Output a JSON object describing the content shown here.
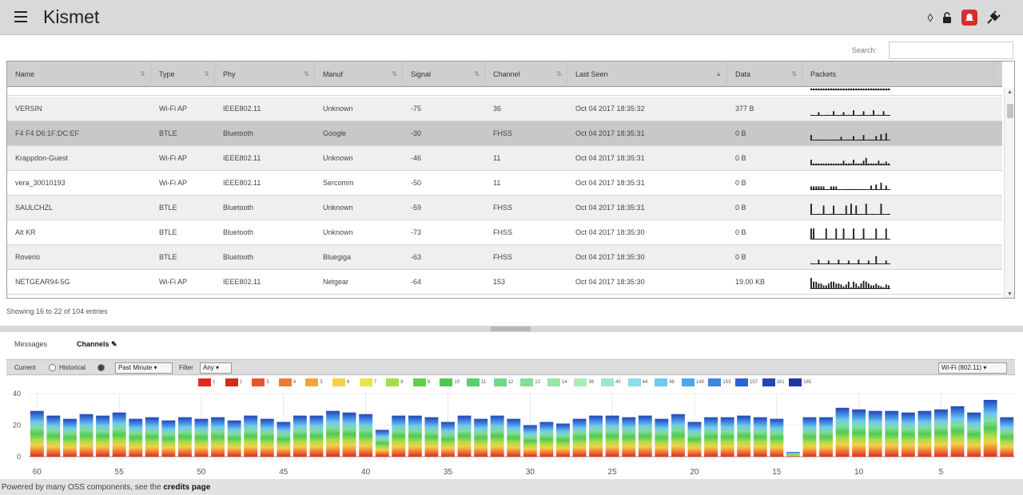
{
  "header": {
    "title": "Kismet",
    "icons": [
      "menu-icon",
      "target-icon",
      "unlock-icon",
      "alert-icon",
      "plugin-icon"
    ]
  },
  "search": {
    "label": "Search:",
    "value": ""
  },
  "table": {
    "columns": [
      "Name",
      "Type",
      "Phy",
      "Manuf",
      "Signal",
      "Channel",
      "Last Seen",
      "Data",
      "Packets"
    ],
    "rows": [
      {
        "name": "",
        "type": "",
        "phy": "",
        "manuf": "",
        "signal": "",
        "channel": "",
        "last_seen": "",
        "data": "",
        "packets": [
          2,
          2,
          2,
          2,
          2,
          2,
          2,
          2,
          2,
          2,
          2,
          2,
          2,
          2,
          2,
          2,
          2,
          2,
          2,
          2,
          2,
          2,
          2,
          2,
          2,
          2,
          2,
          2,
          2,
          2,
          2,
          2
        ]
      },
      {
        "name": "VERSIN",
        "type": "Wi-Fi AP",
        "phy": "IEEE802.11",
        "manuf": "Unknown",
        "signal": "-75",
        "channel": "36",
        "last_seen": "Oct 04 2017 18:35:32",
        "data": "377 B",
        "packets": [
          1,
          0,
          0,
          4,
          0,
          0,
          1,
          1,
          0,
          5,
          0,
          0,
          1,
          4,
          0,
          1,
          0,
          6,
          0,
          0,
          1,
          5,
          0,
          0,
          1,
          6,
          0,
          1,
          0,
          5,
          1,
          0
        ]
      },
      {
        "name": "F4 F4 D6:1F:DC:EF",
        "type": "BTLE",
        "phy": "Bluetooth",
        "manuf": "Google",
        "signal": "-30",
        "channel": "FHSS",
        "last_seen": "Oct 04 2017 18:35:31",
        "data": "0 B",
        "packets": [
          6,
          0,
          0,
          1,
          1,
          1,
          1,
          1,
          0,
          1,
          1,
          1,
          4,
          0,
          1,
          1,
          1,
          5,
          0,
          1,
          1,
          6,
          0,
          1,
          1,
          1,
          5,
          0,
          7,
          0,
          8,
          0
        ]
      },
      {
        "name": "Krappdon-Guest",
        "type": "Wi-Fi AP",
        "phy": "IEEE802.11",
        "manuf": "Unknown",
        "signal": "-46",
        "channel": "11",
        "last_seen": "Oct 04 2017 18:35:31",
        "data": "0 B",
        "packets": [
          6,
          2,
          2,
          2,
          2,
          2,
          2,
          2,
          2,
          2,
          2,
          2,
          2,
          5,
          2,
          2,
          2,
          6,
          2,
          2,
          2,
          5,
          8,
          2,
          2,
          2,
          2,
          5,
          2,
          2,
          4,
          2
        ]
      },
      {
        "name": "vera_30010193",
        "type": "Wi-Fi AP",
        "phy": "IEEE802.11",
        "manuf": "Sercomm",
        "signal": "-50",
        "channel": "11",
        "last_seen": "Oct 04 2017 18:35:31",
        "data": "0 B",
        "packets": [
          4,
          4,
          4,
          4,
          4,
          4,
          0,
          0,
          4,
          4,
          4,
          0,
          0,
          0,
          1,
          1,
          1,
          1,
          1,
          1,
          1,
          0,
          0,
          0,
          5,
          0,
          6,
          0,
          8,
          0,
          5,
          0
        ]
      },
      {
        "name": "SAULCHZL",
        "type": "BTLE",
        "phy": "Bluetooth",
        "manuf": "Unknown",
        "signal": "-59",
        "channel": "FHSS",
        "last_seen": "Oct 04 2017 18:35:31",
        "data": "0 B",
        "packets": [
          12,
          0,
          0,
          1,
          0,
          10,
          0,
          0,
          1,
          10,
          0,
          0,
          1,
          0,
          10,
          0,
          12,
          0,
          10,
          0,
          1,
          0,
          12,
          0,
          0,
          1,
          0,
          0,
          12,
          0,
          0,
          1
        ]
      },
      {
        "name": "Alt KR",
        "type": "BTLE",
        "phy": "Bluetooth",
        "manuf": "Unknown",
        "signal": "-73",
        "channel": "FHSS",
        "last_seen": "Oct 04 2017 18:35:30",
        "data": "0 B",
        "packets": [
          12,
          12,
          0,
          0,
          1,
          0,
          12,
          0,
          1,
          0,
          12,
          0,
          0,
          12,
          0,
          1,
          0,
          12,
          0,
          0,
          1,
          12,
          0,
          0,
          1,
          0,
          12,
          0,
          1,
          0,
          12,
          0
        ]
      },
      {
        "name": "Roverio",
        "type": "BTLE",
        "phy": "Bluetooth",
        "manuf": "Bluegiga",
        "signal": "-63",
        "channel": "FHSS",
        "last_seen": "Oct 04 2017 18:35:30",
        "data": "0 B",
        "packets": [
          1,
          0,
          0,
          5,
          0,
          0,
          0,
          4,
          0,
          0,
          0,
          5,
          0,
          0,
          0,
          4,
          0,
          0,
          0,
          5,
          0,
          0,
          0,
          4,
          0,
          0,
          9,
          0,
          0,
          0,
          4,
          0
        ]
      },
      {
        "name": "NETGEAR94-5G",
        "type": "Wi-Fi AP",
        "phy": "IEEE802.11",
        "manuf": "Netgear",
        "signal": "-64",
        "channel": "153",
        "last_seen": "Oct 04 2017 18:35:30",
        "data": "19.00 KB",
        "packets": [
          12,
          8,
          8,
          6,
          6,
          4,
          4,
          6,
          8,
          8,
          6,
          6,
          5,
          3,
          5,
          8,
          2,
          8,
          6,
          3,
          6,
          9,
          8,
          6,
          4,
          4,
          6,
          4,
          3,
          2,
          5,
          4
        ]
      }
    ],
    "info": "Showing 16 to 22 of 104 entries"
  },
  "panel": {
    "tabs": [
      "Messages",
      "Channels"
    ],
    "controls": {
      "current_label": "Current",
      "historical_label": "Historical",
      "mode": "Past Minute",
      "filter_label": "Filter",
      "filter_value": "Any",
      "phy": "Wi-Fi (802.11)"
    },
    "legend": [
      {
        "label": "1",
        "color": "#e12a24"
      },
      {
        "label": "2",
        "color": "#d22a20"
      },
      {
        "label": "3",
        "color": "#e8552a"
      },
      {
        "label": "4",
        "color": "#ed7d34"
      },
      {
        "label": "5",
        "color": "#f1a540"
      },
      {
        "label": "6",
        "color": "#f5d048"
      },
      {
        "label": "7",
        "color": "#e8e44e"
      },
      {
        "label": "8",
        "color": "#a6dc4c"
      },
      {
        "label": "9",
        "color": "#63cf48"
      },
      {
        "label": "10",
        "color": "#4fc955"
      },
      {
        "label": "11",
        "color": "#5acd6e"
      },
      {
        "label": "12",
        "color": "#6fd786"
      },
      {
        "label": "13",
        "color": "#82dd98"
      },
      {
        "label": "14",
        "color": "#9be5a6"
      },
      {
        "label": "36",
        "color": "#acecb9"
      },
      {
        "label": "40",
        "color": "#9ce7d1"
      },
      {
        "label": "44",
        "color": "#8cdced"
      },
      {
        "label": "48",
        "color": "#70c9ee"
      },
      {
        "label": "149",
        "color": "#4fa5ec"
      },
      {
        "label": "153",
        "color": "#3f84e0"
      },
      {
        "label": "157",
        "color": "#2f61d4"
      },
      {
        "label": "161",
        "color": "#2444b6"
      },
      {
        "label": "165",
        "color": "#2236a0"
      }
    ]
  },
  "chart_data": {
    "type": "bar",
    "stacked": true,
    "ylim": [
      0,
      40
    ],
    "y_ticks": [
      0,
      20,
      40
    ],
    "x_ticks": [
      "60",
      "55",
      "50",
      "45",
      "40",
      "35",
      "30",
      "25",
      "20",
      "15",
      "10",
      "5"
    ],
    "x_tick_positions": [
      60,
      55,
      50,
      45,
      40,
      35,
      30,
      25,
      20,
      15,
      10,
      5
    ],
    "x": [
      60,
      59,
      58,
      57,
      56,
      55,
      54,
      53,
      52,
      51,
      50,
      49,
      48,
      47,
      46,
      45,
      44,
      43,
      42,
      41,
      40,
      39,
      38,
      37,
      36,
      35,
      34,
      33,
      32,
      31,
      30,
      29,
      28,
      27,
      26,
      25,
      24,
      23,
      22,
      21,
      20,
      19,
      18,
      17,
      16,
      15,
      14,
      13,
      12,
      11,
      10,
      9,
      8,
      7,
      6,
      5,
      4,
      3,
      2,
      1
    ],
    "values": [
      29,
      26,
      24,
      27,
      26,
      28,
      24,
      25,
      23,
      25,
      24,
      25,
      23,
      26,
      24,
      22,
      26,
      26,
      29,
      28,
      27,
      17,
      26,
      26,
      25,
      22,
      26,
      24,
      26,
      24,
      20,
      22,
      21,
      24,
      26,
      26,
      25,
      26,
      24,
      27,
      22,
      25,
      25,
      26,
      25,
      24,
      3,
      25,
      25,
      31,
      30,
      29,
      29,
      28,
      29,
      30,
      32,
      28,
      36,
      25
    ],
    "band_colors": [
      "#e12a24",
      "#ed7d34",
      "#f5d048",
      "#a6dc4c",
      "#4fc955",
      "#82dd98",
      "#70c9ee",
      "#3f84e0",
      "#2444b6"
    ],
    "xlabel": "",
    "ylabel": "",
    "grid": true
  },
  "footer": {
    "text": "Powered by many OSS components, see the ",
    "link": "credits page"
  }
}
